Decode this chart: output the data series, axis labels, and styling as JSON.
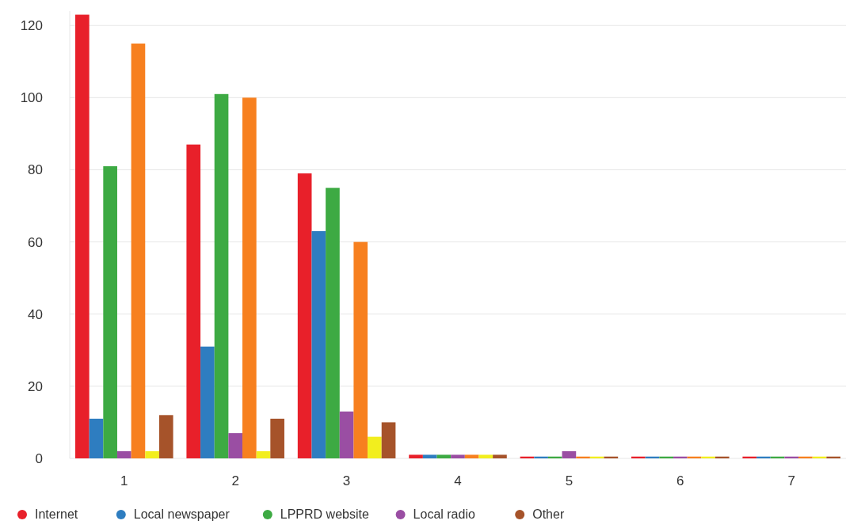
{
  "chart_data": {
    "type": "bar",
    "categories": [
      "1",
      "2",
      "3",
      "4",
      "5",
      "6",
      "7"
    ],
    "series": [
      {
        "name": "Internet",
        "color": "#e8202a",
        "values": [
          123,
          87,
          79,
          1,
          0.5,
          0.5,
          0.5
        ]
      },
      {
        "name": "Local newspaper",
        "color": "#2e7dc0",
        "values": [
          11,
          31,
          63,
          1,
          0.5,
          0.5,
          0.5
        ]
      },
      {
        "name": "LPPRD website",
        "color": "#3daa43",
        "values": [
          81,
          101,
          75,
          1,
          0.5,
          0.5,
          0.5
        ]
      },
      {
        "name": "Local radio",
        "color": "#9a4ea3",
        "values": [
          2,
          7,
          13,
          1,
          2,
          0.5,
          0.5
        ]
      },
      {
        "color": "#f7801f",
        "values": [
          115,
          100,
          60,
          1,
          0.5,
          0.5,
          0.5
        ]
      },
      {
        "color": "#f2ee1e",
        "values": [
          2,
          2,
          6,
          1,
          0.5,
          0.5,
          0.5
        ]
      },
      {
        "name": "Other",
        "color": "#a6532a",
        "values": [
          12,
          11,
          10,
          1,
          0.5,
          0.5,
          0.5
        ]
      }
    ],
    "ylim": [
      0,
      124
    ],
    "yticks": [
      0,
      20,
      40,
      60,
      80,
      100,
      120
    ],
    "grid": "y",
    "legend": "bottom"
  }
}
